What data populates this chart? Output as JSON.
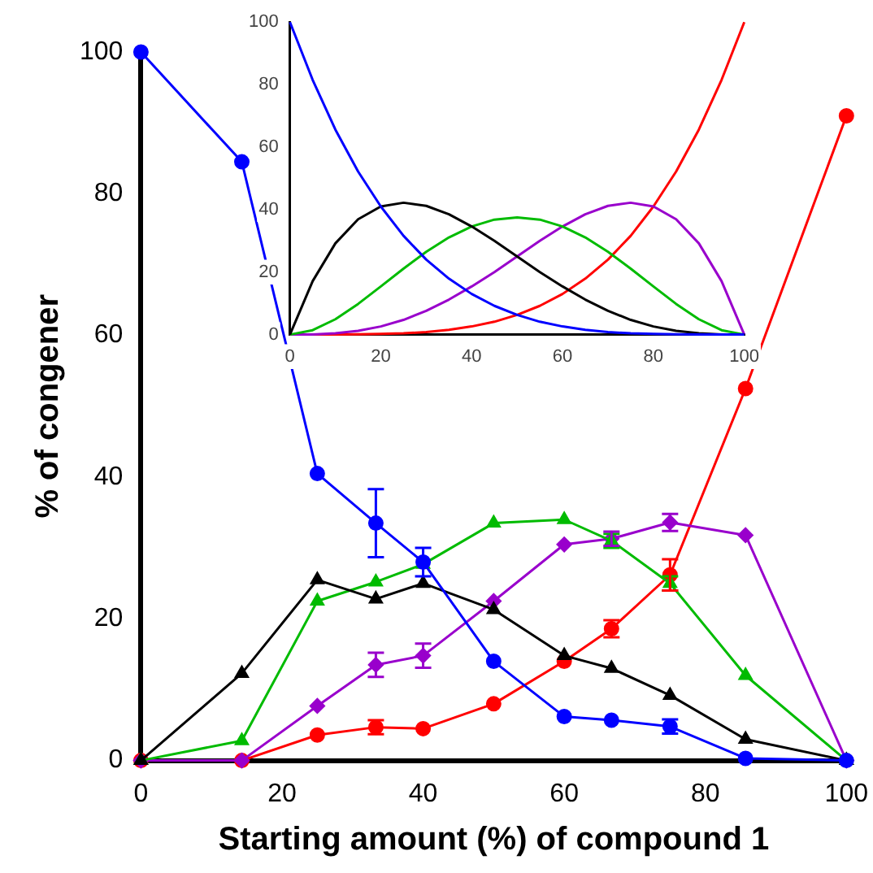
{
  "chart_data": [
    {
      "type": "line",
      "xlabel": "Starting amount (%) of compound 1",
      "ylabel": "% of congener",
      "x": [
        0,
        14.3,
        25,
        33.3,
        40,
        50,
        60,
        66.7,
        75,
        85.7,
        100
      ],
      "xlim": [
        0,
        100
      ],
      "xticks": [
        0,
        20,
        40,
        60,
        80,
        100
      ],
      "ylim": [
        0,
        100
      ],
      "yticks": [
        0,
        20,
        40,
        60,
        80,
        100
      ],
      "grid": false,
      "legend": false,
      "series": [
        {
          "color": "#0000ff",
          "marker": "circle",
          "values": [
            100,
            84.5,
            40.5,
            33.5,
            28,
            14,
            6.2,
            5.7,
            4.8,
            0.3,
            0
          ],
          "errors": [
            null,
            null,
            null,
            4.8,
            2,
            null,
            null,
            null,
            1,
            null,
            null
          ]
        },
        {
          "color": "#000000",
          "marker": "triangle",
          "values": [
            0,
            12.3,
            25.5,
            22.8,
            25,
            21.3,
            14.8,
            13,
            9.2,
            3,
            0
          ],
          "errors": [
            null,
            null,
            null,
            null,
            null,
            null,
            null,
            null,
            null,
            null,
            null
          ]
        },
        {
          "color": "#00bb00",
          "marker": "triangle",
          "values": [
            0,
            2.8,
            22.5,
            25.2,
            27.7,
            33.5,
            34,
            31,
            25,
            12,
            0
          ],
          "errors": [
            null,
            null,
            null,
            null,
            null,
            null,
            null,
            1,
            1,
            null,
            null
          ]
        },
        {
          "color": "#9900cc",
          "marker": "diamond",
          "values": [
            0,
            0,
            7.7,
            13.5,
            14.8,
            22.5,
            30.5,
            31.3,
            33.6,
            31.8,
            0
          ],
          "errors": [
            null,
            null,
            null,
            1.7,
            1.7,
            null,
            null,
            1,
            1.2,
            null,
            null
          ]
        },
        {
          "color": "#ff0000",
          "marker": "circle",
          "values": [
            0,
            0,
            3.6,
            4.7,
            4.5,
            8,
            14,
            18.6,
            26.2,
            52.5,
            91
          ],
          "errors": [
            null,
            null,
            null,
            1,
            null,
            null,
            null,
            1.2,
            2.2,
            null,
            null
          ]
        }
      ]
    },
    {
      "type": "line",
      "x": [
        0,
        5,
        10,
        15,
        20,
        25,
        30,
        35,
        40,
        45,
        50,
        55,
        60,
        65,
        70,
        75,
        80,
        85,
        90,
        95,
        100
      ],
      "xlim": [
        0,
        100
      ],
      "xticks": [
        0,
        20,
        40,
        60,
        80,
        100
      ],
      "ylim": [
        0,
        100
      ],
      "yticks": [
        0,
        20,
        40,
        60,
        80,
        100
      ],
      "grid": false,
      "legend": false,
      "marker": "none",
      "series": [
        {
          "color": "#0000ff",
          "values": [
            100,
            81.5,
            65.6,
            52.2,
            41,
            31.6,
            24,
            17.9,
            13,
            9.2,
            6.3,
            4.1,
            2.6,
            1.5,
            0.8,
            0.4,
            0.2,
            0.1,
            0,
            0,
            0
          ]
        },
        {
          "color": "#000000",
          "values": [
            0,
            17.1,
            29.2,
            36.9,
            41,
            42.2,
            41.2,
            38.5,
            34.6,
            30,
            25,
            20,
            15.4,
            11.2,
            7.6,
            4.7,
            2.6,
            1.2,
            0.4,
            0,
            0
          ]
        },
        {
          "color": "#00bb00",
          "values": [
            0,
            1.4,
            4.9,
            9.8,
            15.4,
            21.1,
            26.5,
            31.1,
            34.6,
            36.8,
            37.5,
            36.8,
            34.6,
            31.1,
            26.5,
            21.1,
            15.4,
            9.8,
            4.9,
            1.4,
            0
          ]
        },
        {
          "color": "#9900cc",
          "values": [
            0,
            0,
            0.4,
            1.2,
            2.6,
            4.7,
            7.6,
            11.2,
            15.4,
            20,
            25,
            30,
            34.6,
            38.5,
            41.2,
            42.2,
            41,
            36.9,
            29.2,
            17.1,
            0
          ]
        },
        {
          "color": "#ff0000",
          "values": [
            0,
            0,
            0,
            0.1,
            0.2,
            0.4,
            0.8,
            1.5,
            2.6,
            4.1,
            6.3,
            9.2,
            13,
            17.9,
            24,
            31.6,
            41,
            52.2,
            65.6,
            81.5,
            100
          ]
        }
      ]
    }
  ]
}
